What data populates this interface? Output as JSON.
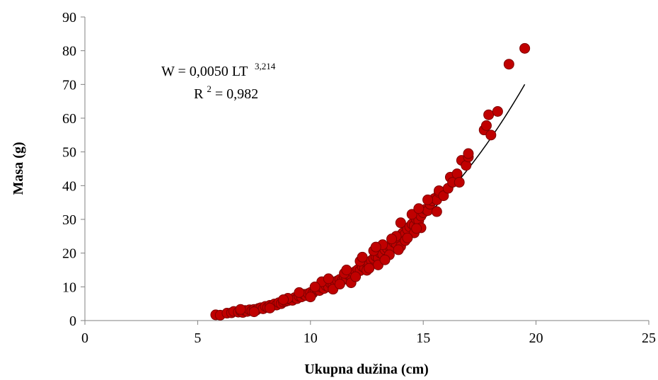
{
  "chart_data": {
    "type": "scatter",
    "xlabel": "Ukupna dužina (cm)",
    "ylabel": "Masa (g)",
    "xlim": [
      0,
      25
    ],
    "ylim": [
      0,
      90
    ],
    "xticks": [
      0,
      5,
      10,
      15,
      20,
      25
    ],
    "yticks": [
      0,
      10,
      20,
      30,
      40,
      50,
      60,
      70,
      80,
      90
    ],
    "grid": false,
    "legend": "none",
    "marker_color": "#C00000",
    "marker_edge_color": "#7F0000",
    "trendline": {
      "type": "power",
      "a": 0.005,
      "b": 3.214,
      "x_range": [
        5.8,
        19.5
      ],
      "equation_main": "W = 0,0050 LT",
      "equation_exponent": "3,214",
      "r2_label": "R",
      "r2_sup": "2",
      "r2_value": " = 0,982"
    },
    "points": [
      [
        5.8,
        1.7
      ],
      [
        6.0,
        1.6
      ],
      [
        6.3,
        2.2
      ],
      [
        6.5,
        2.3
      ],
      [
        6.6,
        2.7
      ],
      [
        6.8,
        2.5
      ],
      [
        6.9,
        2.9
      ],
      [
        7.0,
        2.4
      ],
      [
        7.1,
        3.0
      ],
      [
        7.2,
        2.7
      ],
      [
        7.3,
        3.2
      ],
      [
        7.4,
        2.9
      ],
      [
        7.5,
        3.3
      ],
      [
        7.6,
        3.1
      ],
      [
        7.7,
        3.6
      ],
      [
        7.8,
        3.8
      ],
      [
        7.9,
        3.5
      ],
      [
        8.0,
        4.2
      ],
      [
        8.1,
        3.9
      ],
      [
        8.2,
        4.5
      ],
      [
        8.3,
        4.4
      ],
      [
        8.4,
        4.9
      ],
      [
        8.5,
        4.6
      ],
      [
        8.6,
        5.3
      ],
      [
        8.7,
        5.0
      ],
      [
        8.8,
        5.5
      ],
      [
        8.9,
        5.7
      ],
      [
        9.0,
        5.9
      ],
      [
        9.1,
        6.3
      ],
      [
        9.2,
        6.0
      ],
      [
        9.3,
        6.8
      ],
      [
        9.4,
        6.5
      ],
      [
        9.5,
        7.2
      ],
      [
        9.6,
        7.0
      ],
      [
        9.7,
        7.8
      ],
      [
        9.8,
        7.4
      ],
      [
        9.9,
        8.0
      ],
      [
        10.0,
        8.3
      ],
      [
        10.1,
        8.1
      ],
      [
        10.2,
        8.8
      ],
      [
        10.3,
        9.2
      ],
      [
        10.4,
        8.9
      ],
      [
        10.5,
        9.8
      ],
      [
        10.6,
        9.5
      ],
      [
        10.7,
        10.3
      ],
      [
        10.8,
        10.0
      ],
      [
        10.9,
        11.0
      ],
      [
        11.0,
        10.6
      ],
      [
        11.1,
        11.5
      ],
      [
        11.2,
        11.8
      ],
      [
        11.3,
        12.2
      ],
      [
        11.4,
        11.9
      ],
      [
        11.5,
        12.9
      ],
      [
        11.6,
        12.5
      ],
      [
        11.7,
        13.5
      ],
      [
        11.8,
        13.1
      ],
      [
        11.9,
        14.2
      ],
      [
        12.0,
        14.6
      ],
      [
        12.1,
        15.1
      ],
      [
        12.2,
        14.8
      ],
      [
        12.3,
        16.0
      ],
      [
        12.4,
        15.6
      ],
      [
        12.5,
        17.0
      ],
      [
        12.6,
        16.6
      ],
      [
        12.7,
        17.8
      ],
      [
        12.8,
        18.4
      ],
      [
        12.9,
        19.0
      ],
      [
        13.0,
        18.6
      ],
      [
        13.1,
        20.0
      ],
      [
        13.2,
        19.6
      ],
      [
        13.3,
        21.0
      ],
      [
        13.4,
        21.5
      ],
      [
        13.5,
        22.0
      ],
      [
        13.6,
        21.7
      ],
      [
        13.7,
        23.2
      ],
      [
        13.8,
        22.8
      ],
      [
        13.9,
        24.5
      ],
      [
        14.0,
        25.3
      ],
      [
        14.1,
        26.0
      ],
      [
        14.2,
        25.7
      ],
      [
        14.3,
        27.0
      ],
      [
        14.4,
        27.8
      ],
      [
        14.5,
        28.6
      ],
      [
        14.6,
        28.2
      ],
      [
        14.7,
        30.0
      ],
      [
        14.8,
        29.6
      ],
      [
        14.9,
        31.0
      ],
      [
        15.0,
        32.0
      ],
      [
        15.1,
        33.0
      ],
      [
        15.2,
        32.6
      ],
      [
        15.3,
        34.5
      ],
      [
        15.4,
        35.5
      ],
      [
        15.5,
        36.2
      ],
      [
        15.6,
        35.8
      ],
      [
        15.7,
        38.0
      ],
      [
        10.5,
        11.5
      ],
      [
        11.0,
        9.3
      ],
      [
        11.5,
        14.0
      ],
      [
        11.8,
        11.2
      ],
      [
        12.2,
        17.6
      ],
      [
        12.5,
        14.9
      ],
      [
        12.8,
        20.7
      ],
      [
        13.0,
        16.5
      ],
      [
        13.2,
        22.5
      ],
      [
        13.5,
        19.5
      ],
      [
        13.8,
        25.0
      ],
      [
        14.0,
        22.0
      ],
      [
        14.0,
        29.0
      ],
      [
        14.2,
        23.7
      ],
      [
        14.5,
        31.5
      ],
      [
        14.6,
        26.0
      ],
      [
        14.8,
        33.2
      ],
      [
        14.9,
        27.5
      ],
      [
        15.2,
        35.8
      ],
      [
        15.6,
        32.3
      ],
      [
        15.7,
        38.5
      ],
      [
        15.9,
        37.0
      ],
      [
        16.1,
        39.2
      ],
      [
        16.2,
        42.5
      ],
      [
        16.3,
        41.0
      ],
      [
        16.5,
        43.5
      ],
      [
        16.6,
        41.0
      ],
      [
        16.7,
        47.5
      ],
      [
        16.9,
        46.0
      ],
      [
        17.0,
        48.5
      ],
      [
        17.0,
        49.5
      ],
      [
        17.7,
        56.5
      ],
      [
        17.8,
        57.8
      ],
      [
        17.9,
        61.0
      ],
      [
        18.0,
        55.0
      ],
      [
        18.3,
        62.0
      ],
      [
        18.8,
        76.0
      ],
      [
        19.5,
        80.7
      ],
      [
        9.0,
        6.6
      ],
      [
        9.5,
        8.3
      ],
      [
        10.0,
        7.0
      ],
      [
        10.2,
        10.0
      ],
      [
        10.8,
        12.4
      ],
      [
        11.3,
        10.8
      ],
      [
        11.6,
        15.0
      ],
      [
        12.0,
        13.0
      ],
      [
        12.3,
        18.8
      ],
      [
        12.6,
        15.5
      ],
      [
        12.9,
        21.8
      ],
      [
        13.3,
        18.0
      ],
      [
        13.6,
        24.2
      ],
      [
        13.9,
        21.0
      ],
      [
        14.3,
        24.5
      ],
      [
        14.7,
        27.3
      ],
      [
        8.2,
        3.7
      ],
      [
        8.8,
        6.2
      ],
      [
        7.5,
        2.6
      ],
      [
        6.9,
        3.3
      ]
    ]
  }
}
